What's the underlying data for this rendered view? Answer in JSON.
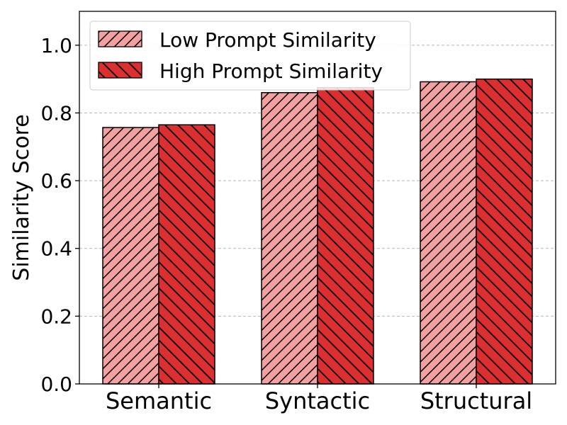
{
  "chart_data": {
    "type": "bar",
    "title": "",
    "xlabel": "",
    "ylabel": "Similarity Score",
    "categories": [
      "Semantic",
      "Syntactic",
      "Structural"
    ],
    "series": [
      {
        "name": "Low Prompt Similarity",
        "values": [
          0.757,
          0.86,
          0.892
        ],
        "color": "#f4a0a0",
        "hatch": "forward-diagonal"
      },
      {
        "name": "High Prompt Similarity",
        "values": [
          0.765,
          0.875,
          0.9
        ],
        "color": "#dc2f2f",
        "hatch": "backward-diagonal"
      }
    ],
    "ylim": [
      0,
      1.1
    ],
    "yticks": [
      0.0,
      0.2,
      0.4,
      0.6,
      0.8,
      1.0
    ],
    "ytick_labels": [
      "0.0",
      "0.2",
      "0.4",
      "0.6",
      "0.8",
      "1.0"
    ],
    "grid": "horizontal dashed",
    "legend_position": "top-left"
  }
}
